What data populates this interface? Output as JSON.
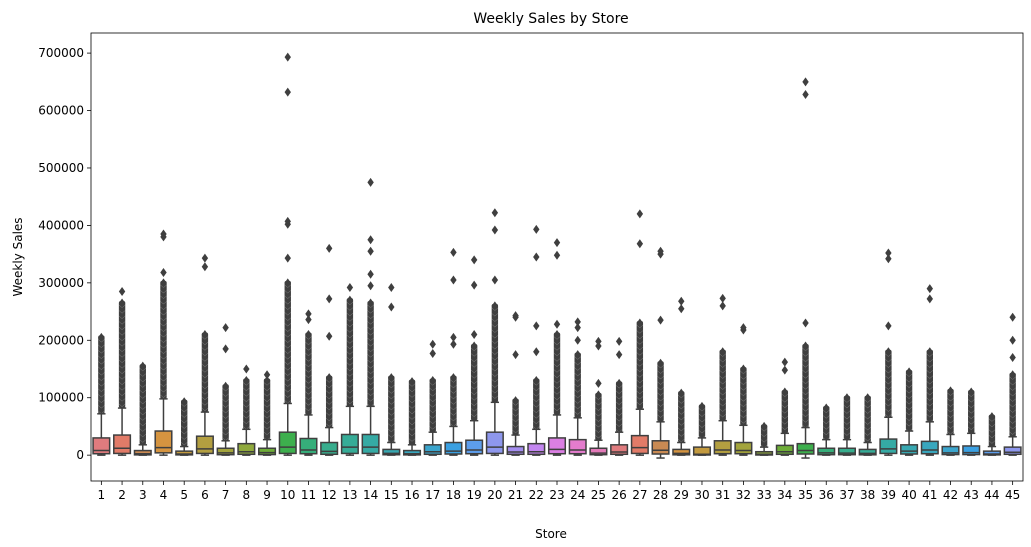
{
  "chart_data": {
    "type": "box",
    "title": "Weekly Sales by Store",
    "xlabel": "Store",
    "ylabel": "Weekly Sales",
    "ylim": [
      -45000,
      735000
    ],
    "yticks": [
      0,
      100000,
      200000,
      300000,
      400000,
      500000,
      600000,
      700000
    ],
    "grid": false,
    "legend": "none",
    "categories": [
      "1",
      "2",
      "3",
      "4",
      "5",
      "6",
      "7",
      "8",
      "9",
      "10",
      "11",
      "12",
      "13",
      "14",
      "15",
      "16",
      "17",
      "18",
      "19",
      "20",
      "21",
      "22",
      "23",
      "24",
      "25",
      "26",
      "27",
      "28",
      "29",
      "30",
      "31",
      "32",
      "33",
      "34",
      "35",
      "36",
      "37",
      "38",
      "39",
      "40",
      "41",
      "42",
      "43",
      "44",
      "45"
    ],
    "boxes": [
      {
        "q1": 2500,
        "median": 8000,
        "q3": 30000,
        "whislo": 0,
        "whishi": 72000,
        "fly_max": 205000,
        "extra": []
      },
      {
        "q1": 3000,
        "median": 12000,
        "q3": 35000,
        "whislo": 0,
        "whishi": 82000,
        "fly_max": 265000,
        "extra": [
          285000
        ]
      },
      {
        "q1": 500,
        "median": 2500,
        "q3": 8000,
        "whislo": 0,
        "whishi": 18000,
        "fly_max": 155000,
        "extra": []
      },
      {
        "q1": 4000,
        "median": 13000,
        "q3": 42000,
        "whislo": 0,
        "whishi": 98000,
        "fly_max": 300000,
        "extra": [
          318000,
          380000,
          385000
        ]
      },
      {
        "q1": 500,
        "median": 2000,
        "q3": 7000,
        "whislo": 0,
        "whishi": 15000,
        "fly_max": 93000,
        "extra": []
      },
      {
        "q1": 3000,
        "median": 11000,
        "q3": 33000,
        "whislo": 0,
        "whishi": 75000,
        "fly_max": 210000,
        "extra": [
          328000,
          343000
        ]
      },
      {
        "q1": 800,
        "median": 4000,
        "q3": 12000,
        "whislo": 0,
        "whishi": 25000,
        "fly_max": 120000,
        "extra": [
          185000,
          222000
        ]
      },
      {
        "q1": 1500,
        "median": 6000,
        "q3": 20000,
        "whislo": 0,
        "whishi": 45000,
        "fly_max": 130000,
        "extra": [
          150000
        ]
      },
      {
        "q1": 1000,
        "median": 4500,
        "q3": 12000,
        "whislo": 0,
        "whishi": 27000,
        "fly_max": 130000,
        "extra": [
          140000
        ]
      },
      {
        "q1": 3000,
        "median": 14000,
        "q3": 40000,
        "whislo": 0,
        "whishi": 90000,
        "fly_max": 300000,
        "extra": [
          343000,
          402000,
          407000,
          632000,
          693000
        ]
      },
      {
        "q1": 2500,
        "median": 9000,
        "q3": 29000,
        "whislo": 0,
        "whishi": 70000,
        "fly_max": 210000,
        "extra": [
          236000,
          246000
        ]
      },
      {
        "q1": 1500,
        "median": 6500,
        "q3": 22000,
        "whislo": 0,
        "whishi": 48000,
        "fly_max": 135000,
        "extra": [
          207000,
          272000,
          360000
        ]
      },
      {
        "q1": 3000,
        "median": 14000,
        "q3": 36000,
        "whislo": 0,
        "whishi": 85000,
        "fly_max": 270000,
        "extra": [
          292000
        ]
      },
      {
        "q1": 3000,
        "median": 14000,
        "q3": 36000,
        "whislo": 0,
        "whishi": 85000,
        "fly_max": 265000,
        "extra": [
          295000,
          315000,
          355000,
          375000,
          475000
        ]
      },
      {
        "q1": 700,
        "median": 3000,
        "q3": 10000,
        "whislo": 0,
        "whishi": 22000,
        "fly_max": 135000,
        "extra": [
          258000,
          292000
        ]
      },
      {
        "q1": 500,
        "median": 2500,
        "q3": 8000,
        "whislo": 0,
        "whishi": 18000,
        "fly_max": 128000,
        "extra": []
      },
      {
        "q1": 1500,
        "median": 6000,
        "q3": 18000,
        "whislo": 0,
        "whishi": 40000,
        "fly_max": 130000,
        "extra": [
          177000,
          193000
        ]
      },
      {
        "q1": 2000,
        "median": 7000,
        "q3": 22000,
        "whislo": 0,
        "whishi": 50000,
        "fly_max": 135000,
        "extra": [
          193000,
          205000,
          305000,
          353000
        ]
      },
      {
        "q1": 2500,
        "median": 9000,
        "q3": 26000,
        "whislo": 0,
        "whishi": 60000,
        "fly_max": 190000,
        "extra": [
          210000,
          296000,
          340000
        ]
      },
      {
        "q1": 3000,
        "median": 14000,
        "q3": 40000,
        "whislo": 0,
        "whishi": 92000,
        "fly_max": 260000,
        "extra": [
          305000,
          392000,
          422000
        ]
      },
      {
        "q1": 1500,
        "median": 5500,
        "q3": 15000,
        "whislo": 0,
        "whishi": 35000,
        "fly_max": 95000,
        "extra": [
          175000,
          240000,
          243000
        ]
      },
      {
        "q1": 1500,
        "median": 6000,
        "q3": 20000,
        "whislo": 0,
        "whishi": 45000,
        "fly_max": 130000,
        "extra": [
          180000,
          225000,
          345000,
          393000
        ]
      },
      {
        "q1": 2500,
        "median": 10000,
        "q3": 30000,
        "whislo": 0,
        "whishi": 70000,
        "fly_max": 210000,
        "extra": [
          228000,
          348000,
          370000
        ]
      },
      {
        "q1": 2500,
        "median": 9000,
        "q3": 27000,
        "whislo": 0,
        "whishi": 65000,
        "fly_max": 175000,
        "extra": [
          200000,
          222000,
          232000
        ]
      },
      {
        "q1": 800,
        "median": 3500,
        "q3": 12000,
        "whislo": 0,
        "whishi": 26000,
        "fly_max": 105000,
        "extra": [
          125000,
          190000,
          198000
        ]
      },
      {
        "q1": 1500,
        "median": 5500,
        "q3": 18000,
        "whislo": 0,
        "whishi": 40000,
        "fly_max": 125000,
        "extra": [
          175000,
          198000
        ]
      },
      {
        "q1": 3000,
        "median": 13000,
        "q3": 34000,
        "whislo": 0,
        "whishi": 80000,
        "fly_max": 230000,
        "extra": [
          368000,
          420000
        ]
      },
      {
        "q1": 2000,
        "median": 8500,
        "q3": 25000,
        "whislo": -5000,
        "whishi": 58000,
        "fly_max": 160000,
        "extra": [
          235000,
          350000,
          355000
        ]
      },
      {
        "q1": 600,
        "median": 3000,
        "q3": 10000,
        "whislo": 0,
        "whishi": 22000,
        "fly_max": 108000,
        "extra": [
          255000,
          268000
        ]
      },
      {
        "q1": 300,
        "median": 1500,
        "q3": 14000,
        "whislo": 0,
        "whishi": 30000,
        "fly_max": 85000,
        "extra": []
      },
      {
        "q1": 2500,
        "median": 9000,
        "q3": 25000,
        "whislo": 0,
        "whishi": 60000,
        "fly_max": 180000,
        "extra": [
          260000,
          273000
        ]
      },
      {
        "q1": 2500,
        "median": 8000,
        "q3": 22000,
        "whislo": 0,
        "whishi": 52000,
        "fly_max": 150000,
        "extra": [
          218000,
          222000
        ]
      },
      {
        "q1": 300,
        "median": 1500,
        "q3": 6000,
        "whislo": 0,
        "whishi": 14000,
        "fly_max": 50000,
        "extra": []
      },
      {
        "q1": 1500,
        "median": 6000,
        "q3": 17000,
        "whislo": 0,
        "whishi": 38000,
        "fly_max": 110000,
        "extra": [
          148000,
          162000
        ]
      },
      {
        "q1": 2000,
        "median": 8000,
        "q3": 20000,
        "whislo": -5000,
        "whishi": 48000,
        "fly_max": 190000,
        "extra": [
          230000,
          628000,
          650000
        ]
      },
      {
        "q1": 800,
        "median": 4000,
        "q3": 12000,
        "whislo": 0,
        "whishi": 27000,
        "fly_max": 82000,
        "extra": []
      },
      {
        "q1": 800,
        "median": 3500,
        "q3": 12000,
        "whislo": 0,
        "whishi": 27000,
        "fly_max": 100000,
        "extra": []
      },
      {
        "q1": 600,
        "median": 3000,
        "q3": 10000,
        "whislo": 0,
        "whishi": 22000,
        "fly_max": 100000,
        "extra": []
      },
      {
        "q1": 3000,
        "median": 11000,
        "q3": 28000,
        "whislo": 0,
        "whishi": 66000,
        "fly_max": 180000,
        "extra": [
          225000,
          342000,
          352000
        ]
      },
      {
        "q1": 2000,
        "median": 7000,
        "q3": 18000,
        "whislo": 0,
        "whishi": 42000,
        "fly_max": 145000,
        "extra": []
      },
      {
        "q1": 2500,
        "median": 9000,
        "q3": 24000,
        "whislo": 0,
        "whishi": 58000,
        "fly_max": 180000,
        "extra": [
          272000,
          290000
        ]
      },
      {
        "q1": 1000,
        "median": 4000,
        "q3": 15000,
        "whislo": 0,
        "whishi": 36000,
        "fly_max": 112000,
        "extra": []
      },
      {
        "q1": 1000,
        "median": 4500,
        "q3": 16000,
        "whislo": 0,
        "whishi": 38000,
        "fly_max": 110000,
        "extra": []
      },
      {
        "q1": 500,
        "median": 2000,
        "q3": 7000,
        "whislo": 0,
        "whishi": 15000,
        "fly_max": 67000,
        "extra": []
      },
      {
        "q1": 1500,
        "median": 5000,
        "q3": 14000,
        "whislo": 0,
        "whishi": 32000,
        "fly_max": 140000,
        "extra": [
          170000,
          200000,
          240000
        ]
      }
    ],
    "colors": [
      "#e07b7e",
      "#e27b68",
      "#c98a53",
      "#d59440",
      "#c39a3f",
      "#b39f40",
      "#a3a43c",
      "#8fa93c",
      "#6ead38",
      "#3daf4d",
      "#36ae7a",
      "#37ad8d",
      "#36ac97",
      "#35aaa4",
      "#37a8b1",
      "#39a7be",
      "#3ba5cd",
      "#3aa0e2",
      "#5d9deb",
      "#8e97ed",
      "#a48df0",
      "#c386f0",
      "#db7fe3",
      "#e47ccd",
      "#e47ab9"
    ],
    "edge_color": "#3f3f3f"
  }
}
